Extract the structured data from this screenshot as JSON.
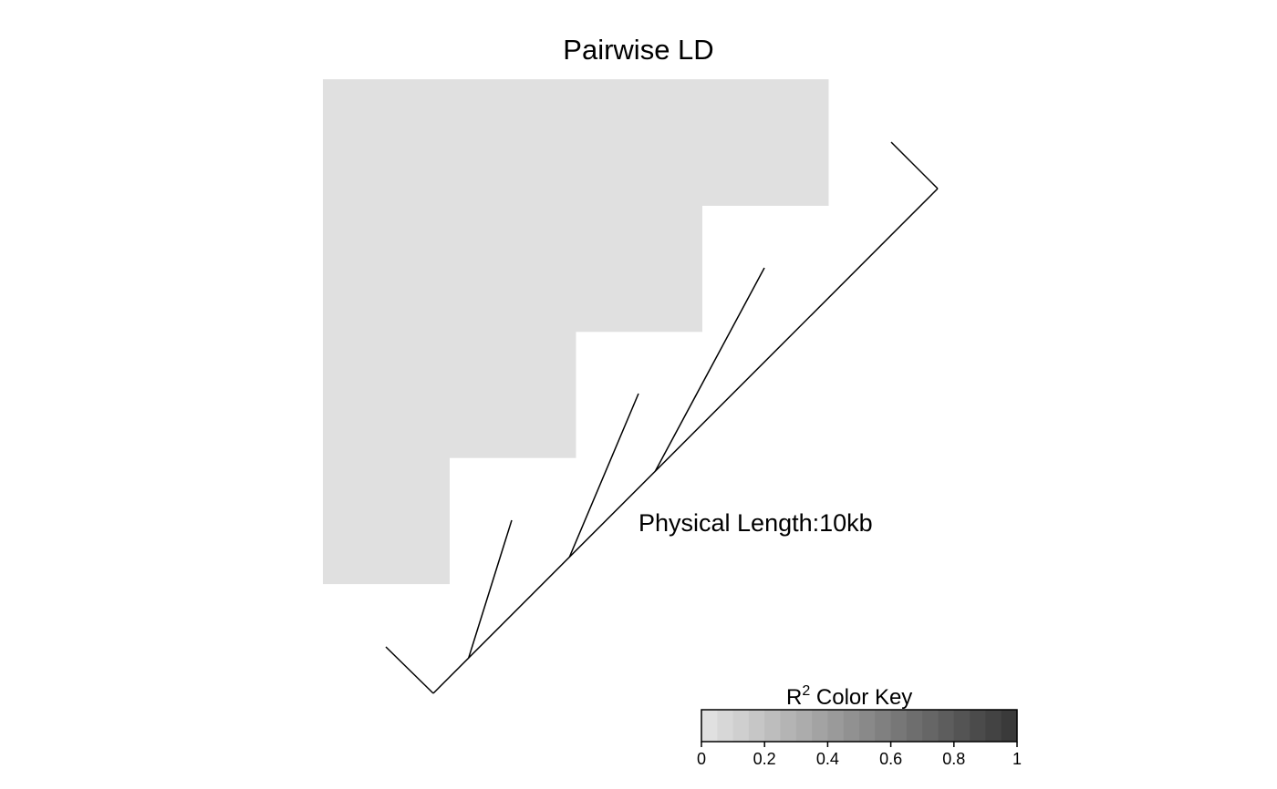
{
  "chart_data": {
    "type": "heatmap",
    "title": "Pairwise LD",
    "snp_count": 5,
    "r2_matrix": [
      [
        0,
        0,
        0,
        0
      ],
      [
        0,
        0,
        0
      ],
      [
        0,
        0
      ],
      [
        0
      ]
    ],
    "colors": {
      "ld_cell": "#e0e0e0",
      "line": "#000000",
      "background": "#ffffff"
    },
    "genetic_map": {
      "label": "Physical Length:10kb",
      "snp_positions": [
        0,
        0.07,
        0.27,
        0.44,
        1
      ]
    },
    "color_key": {
      "label_main": "R",
      "label_sup": "2",
      "label_rest": " Color Key",
      "range": [
        0,
        1
      ],
      "steps": 20,
      "color_low": "#e0e0e0",
      "color_high": "#3a3a3a",
      "ticks": [
        0,
        0.2,
        0.4,
        0.6,
        0.8,
        1
      ],
      "tick_labels": [
        "0",
        "0.2",
        "0.4",
        "0.6",
        "0.8",
        "1"
      ]
    }
  }
}
